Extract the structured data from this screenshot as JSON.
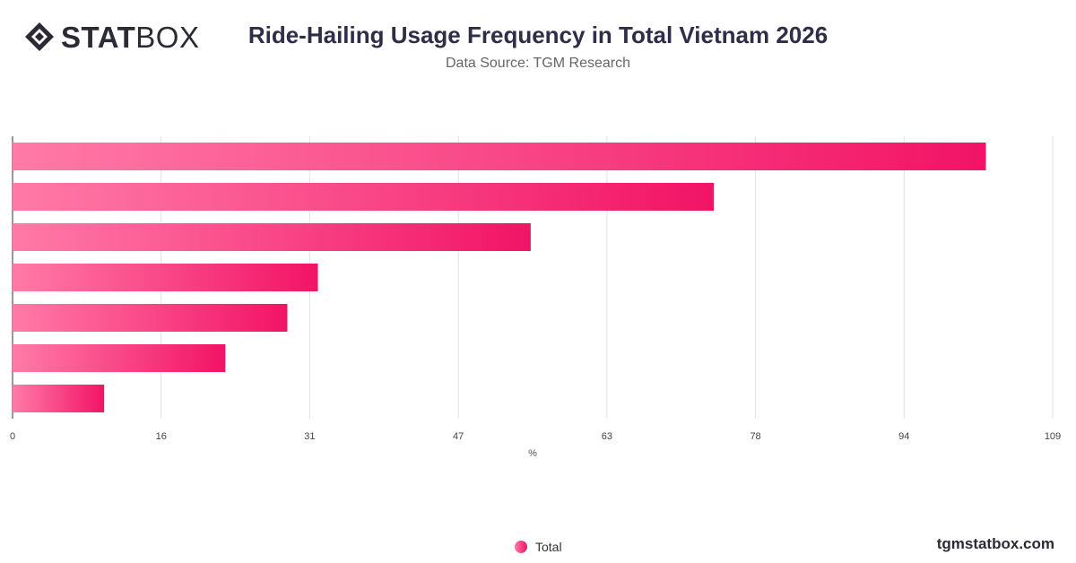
{
  "brand": {
    "logo_bold": "STAT",
    "logo_light": "BOX"
  },
  "header": {
    "title": "Ride-Hailing Usage Frequency in Total Vietnam 2026",
    "subtitle": "Data Source: TGM Research"
  },
  "chart_data": {
    "type": "bar",
    "orientation": "horizontal",
    "categories": [
      "",
      "",
      "",
      "",
      "",
      "",
      ""
    ],
    "series": [
      {
        "name": "Total",
        "values": [
          102,
          73.5,
          54.3,
          32,
          28.8,
          22.3,
          9.6
        ]
      }
    ],
    "xlabel": "%",
    "ylabel": "",
    "xlim": [
      0,
      109
    ],
    "x_ticks": [
      "0",
      "16",
      "31",
      "47",
      "63",
      "78",
      "94",
      "109"
    ],
    "grid": true,
    "legend": "bottom-center"
  },
  "legend": {
    "label": "Total"
  },
  "footer": {
    "site": "tgmstatbox.com"
  },
  "colors": {
    "bar_start": "#ff7aa7",
    "bar_end": "#f21466",
    "grid": "#e2e2e2",
    "title": "#2e2e48"
  }
}
